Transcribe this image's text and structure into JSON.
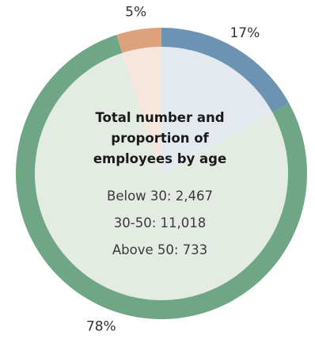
{
  "chart_data": {
    "type": "pie",
    "title_lines": [
      "Total number and",
      "proportion of",
      "employees by age"
    ],
    "stats": [
      "Below 30: 2,467",
      "30-50: 11,018",
      "Above 50: 733"
    ],
    "slices": [
      {
        "value": 17,
        "label": "17%",
        "color": "#6c93b2",
        "inner_color": "#e3e9ef"
      },
      {
        "value": 78,
        "label": "78%",
        "color": "#6fa786",
        "inner_color": "#e3ebe3"
      },
      {
        "value": 5,
        "label": "5%",
        "color": "#dba27b",
        "inner_color": "#f7e6dc"
      }
    ],
    "start": "top",
    "direction": "clockwise"
  }
}
